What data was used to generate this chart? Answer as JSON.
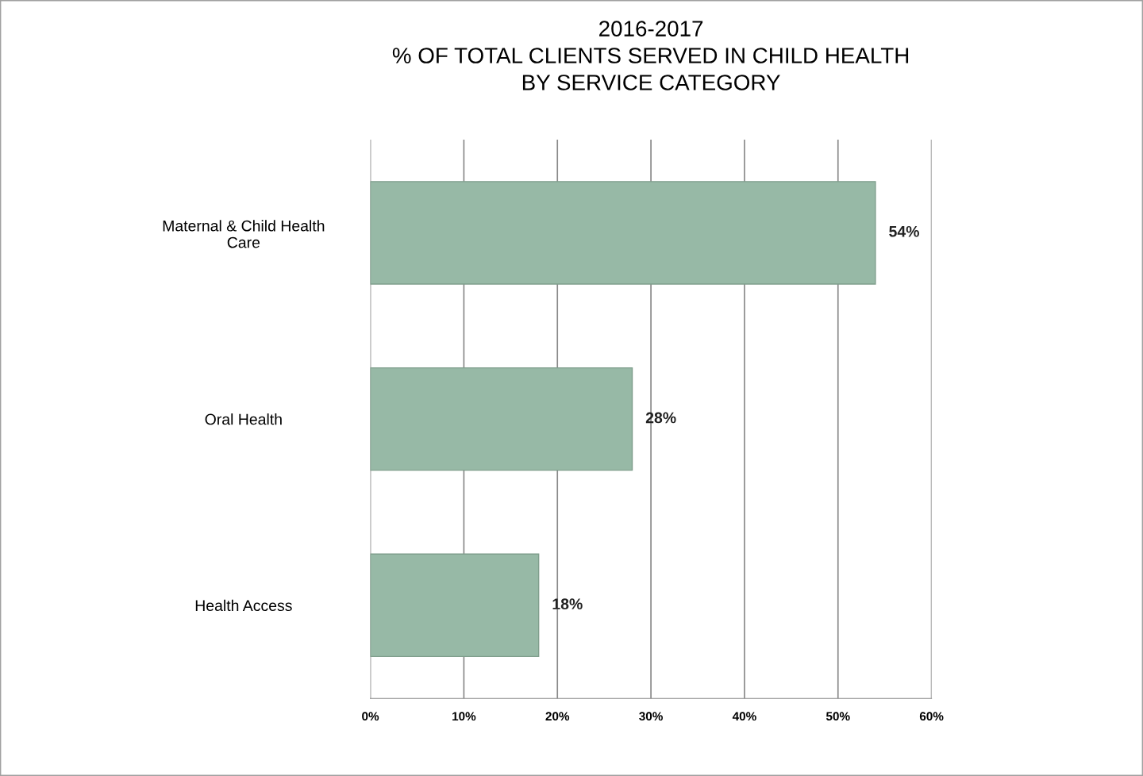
{
  "chart_data": {
    "type": "bar",
    "orientation": "horizontal",
    "title": "2016-2017\n% OF TOTAL CLIENTS SERVED IN CHILD HEALTH\nBY SERVICE CATEGORY",
    "categories": [
      "Maternal & Child Health\nCare",
      "Oral Health",
      "Health Access"
    ],
    "values": [
      54,
      28,
      18
    ],
    "value_labels": [
      "54%",
      "28%",
      "18%"
    ],
    "color": "#97b9a6",
    "xlim": [
      0,
      60
    ],
    "xticks": [
      {
        "value": 0,
        "label": "0%"
      },
      {
        "value": 10,
        "label": "10%"
      },
      {
        "value": 20,
        "label": "20%"
      },
      {
        "value": 30,
        "label": "30%"
      },
      {
        "value": 40,
        "label": "40%"
      },
      {
        "value": 50,
        "label": "50%"
      },
      {
        "value": 60,
        "label": "60%"
      }
    ],
    "grid": "x"
  }
}
